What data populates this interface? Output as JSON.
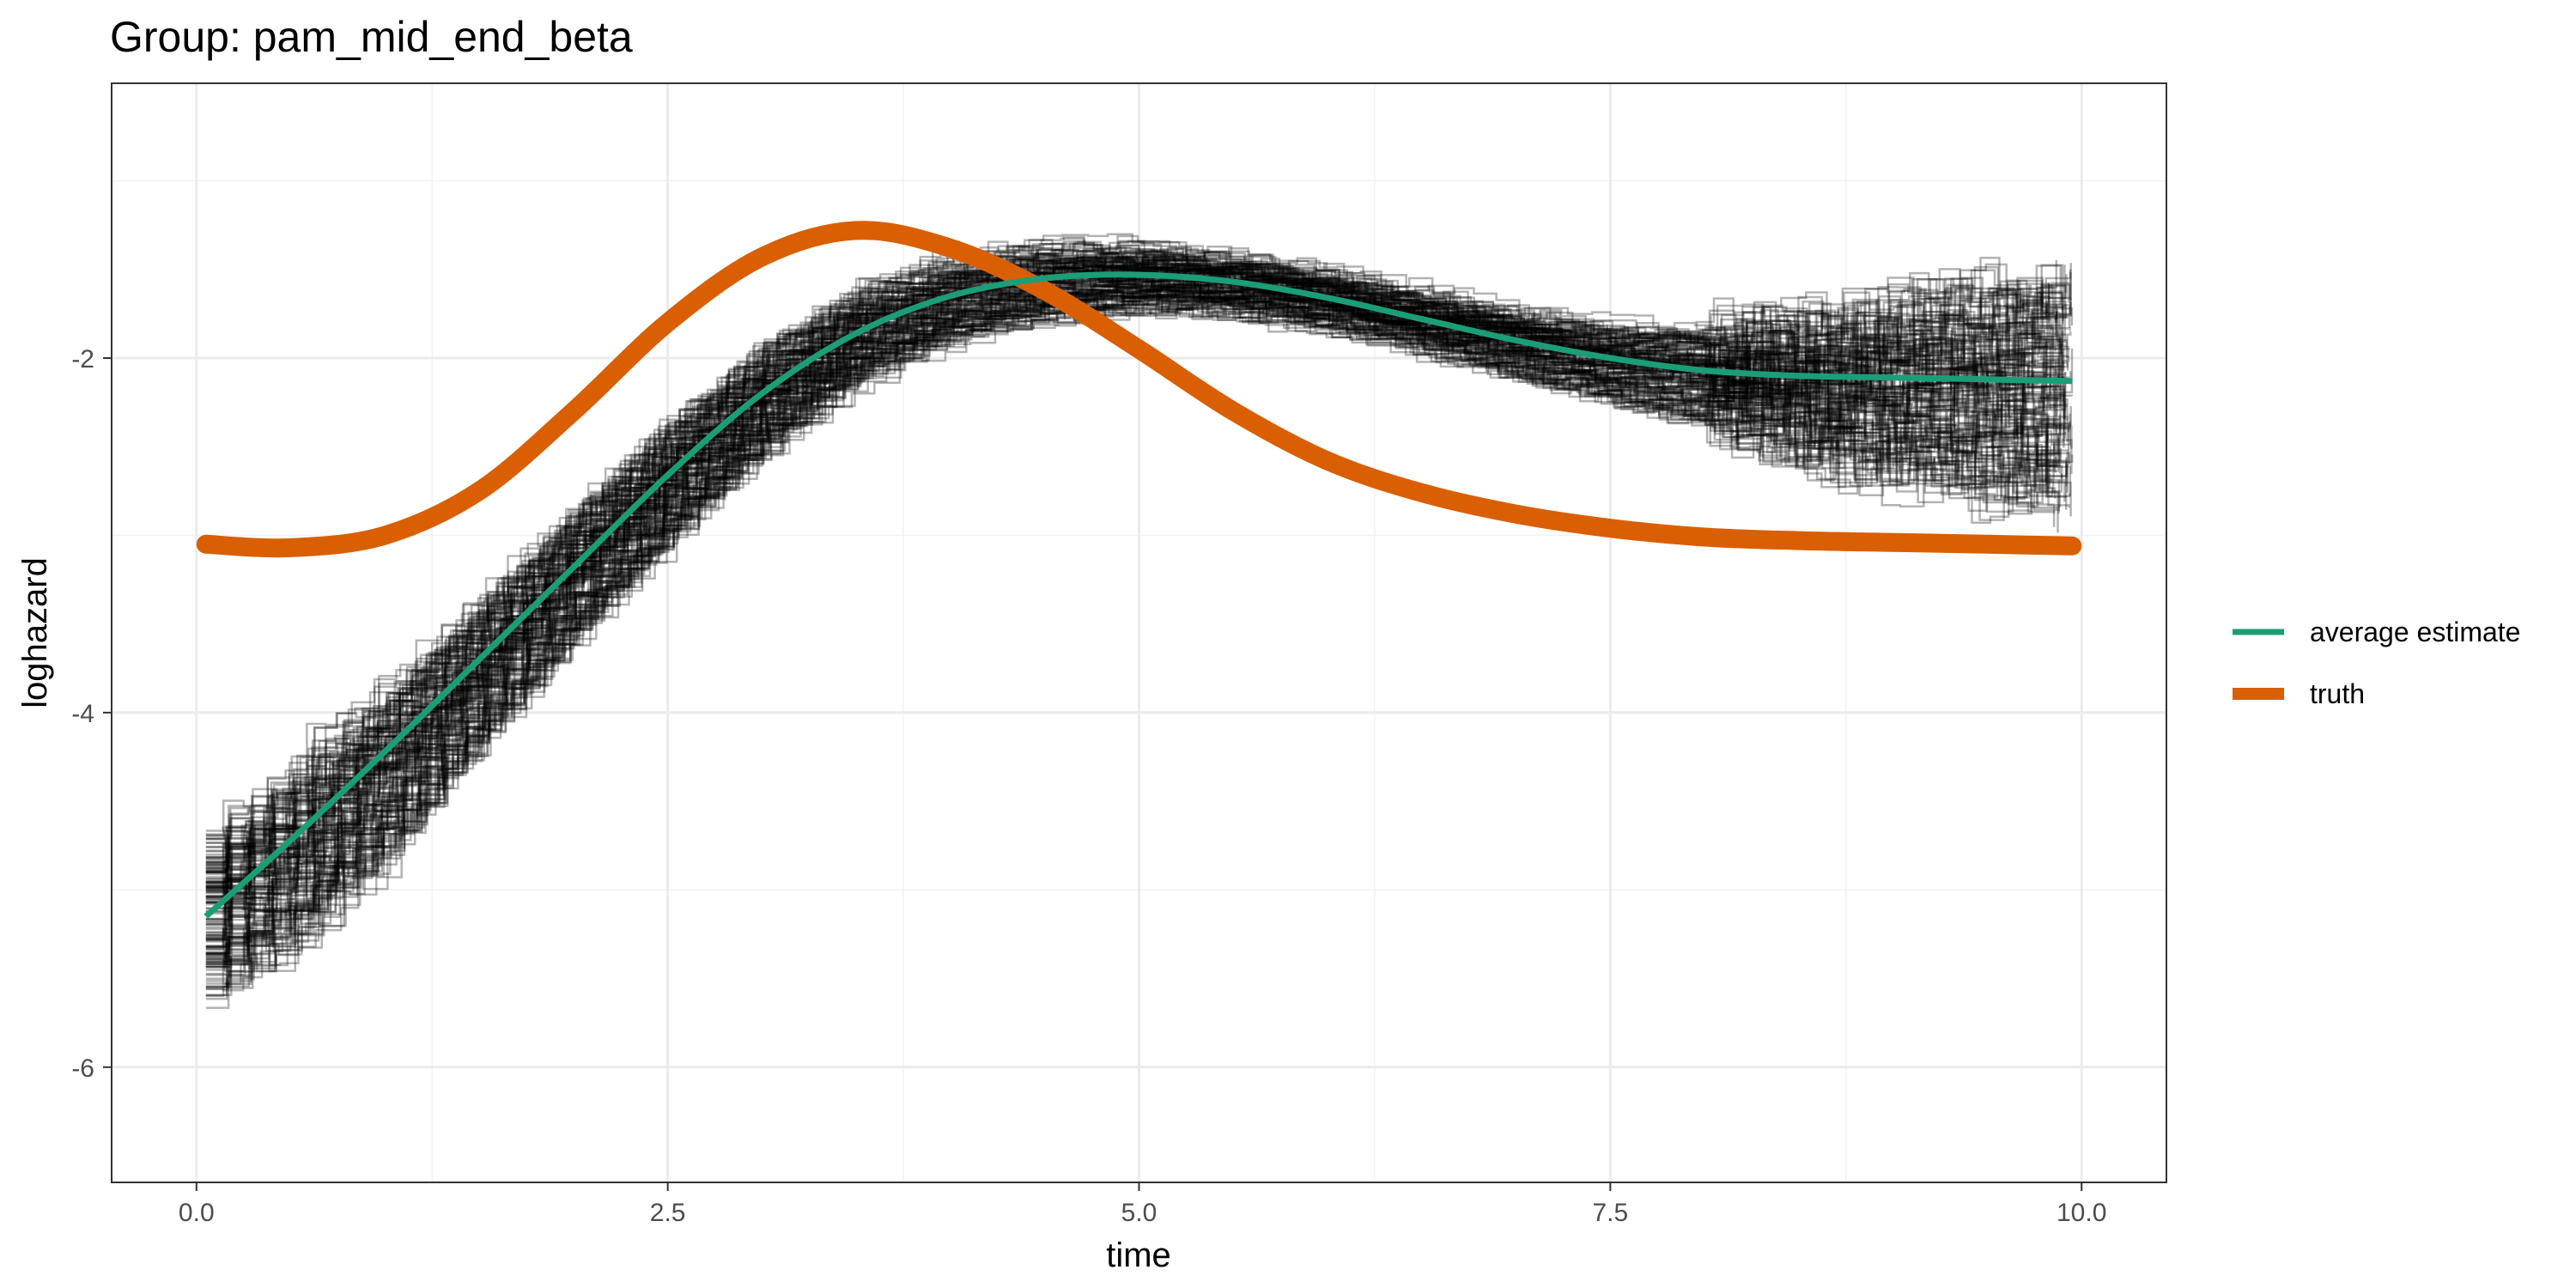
{
  "chart_data": {
    "type": "line",
    "title": "Group: pam_mid_end_beta",
    "xlabel": "time",
    "ylabel": "loghazard",
    "xlim": [
      -0.45,
      10.45
    ],
    "ylim": [
      -6.65,
      -0.45
    ],
    "x_ticks": [
      0,
      2.5,
      5,
      7.5,
      10
    ],
    "x_tick_labels": [
      "0.0",
      "2.5",
      "5.0",
      "7.5",
      "10.0"
    ],
    "y_ticks": [
      -6,
      -4,
      -2
    ],
    "y_tick_labels": [
      "-6",
      "-4",
      "-2"
    ],
    "grid": true,
    "legend_position": "right",
    "legend": [
      {
        "label": "average estimate",
        "color": "#1b9e77"
      },
      {
        "label": "truth",
        "color": "#d95f02"
      }
    ],
    "series": [
      {
        "name": "average estimate",
        "color": "#1b9e77",
        "x": [
          0.05,
          0.5,
          1.0,
          1.5,
          2.0,
          2.5,
          3.0,
          3.5,
          4.0,
          4.5,
          5.0,
          5.5,
          6.0,
          6.5,
          7.0,
          7.5,
          8.0,
          8.5,
          9.0,
          9.5,
          9.95
        ],
        "y": [
          -5.15,
          -4.72,
          -4.22,
          -3.7,
          -3.18,
          -2.66,
          -2.2,
          -1.86,
          -1.65,
          -1.55,
          -1.53,
          -1.57,
          -1.66,
          -1.78,
          -1.9,
          -2.0,
          -2.07,
          -2.1,
          -2.11,
          -2.12,
          -2.13
        ]
      },
      {
        "name": "truth",
        "color": "#d95f02",
        "x": [
          0.05,
          0.5,
          1.0,
          1.5,
          2.0,
          2.5,
          3.0,
          3.5,
          4.0,
          4.5,
          5.0,
          5.5,
          6.0,
          6.5,
          7.0,
          7.5,
          8.0,
          8.5,
          9.0,
          9.5,
          9.95
        ],
        "y": [
          -3.05,
          -3.07,
          -3.0,
          -2.75,
          -2.3,
          -1.8,
          -1.43,
          -1.28,
          -1.38,
          -1.62,
          -1.95,
          -2.3,
          -2.58,
          -2.76,
          -2.88,
          -2.96,
          -3.01,
          -3.03,
          -3.04,
          -3.05,
          -3.06
        ]
      }
    ],
    "simulation_band": {
      "color": "#000000",
      "x": [
        0.05,
        0.5,
        1.0,
        1.5,
        2.0,
        2.5,
        3.0,
        3.5,
        4.0,
        4.5,
        5.0,
        5.5,
        6.0,
        6.5,
        7.0,
        7.5,
        8.0,
        8.5,
        9.0,
        9.5,
        9.95
      ],
      "upper": [
        -4.65,
        -4.25,
        -3.78,
        -3.28,
        -2.78,
        -2.3,
        -1.88,
        -1.58,
        -1.42,
        -1.35,
        -1.36,
        -1.42,
        -1.52,
        -1.63,
        -1.73,
        -1.8,
        -1.8,
        -1.75,
        -1.62,
        -1.5,
        -1.45
      ],
      "lower": [
        -5.6,
        -5.35,
        -4.85,
        -4.2,
        -3.6,
        -3.05,
        -2.55,
        -2.15,
        -1.92,
        -1.8,
        -1.74,
        -1.76,
        -1.84,
        -1.97,
        -2.12,
        -2.27,
        -2.42,
        -2.6,
        -2.75,
        -2.85,
        -2.95
      ]
    }
  }
}
